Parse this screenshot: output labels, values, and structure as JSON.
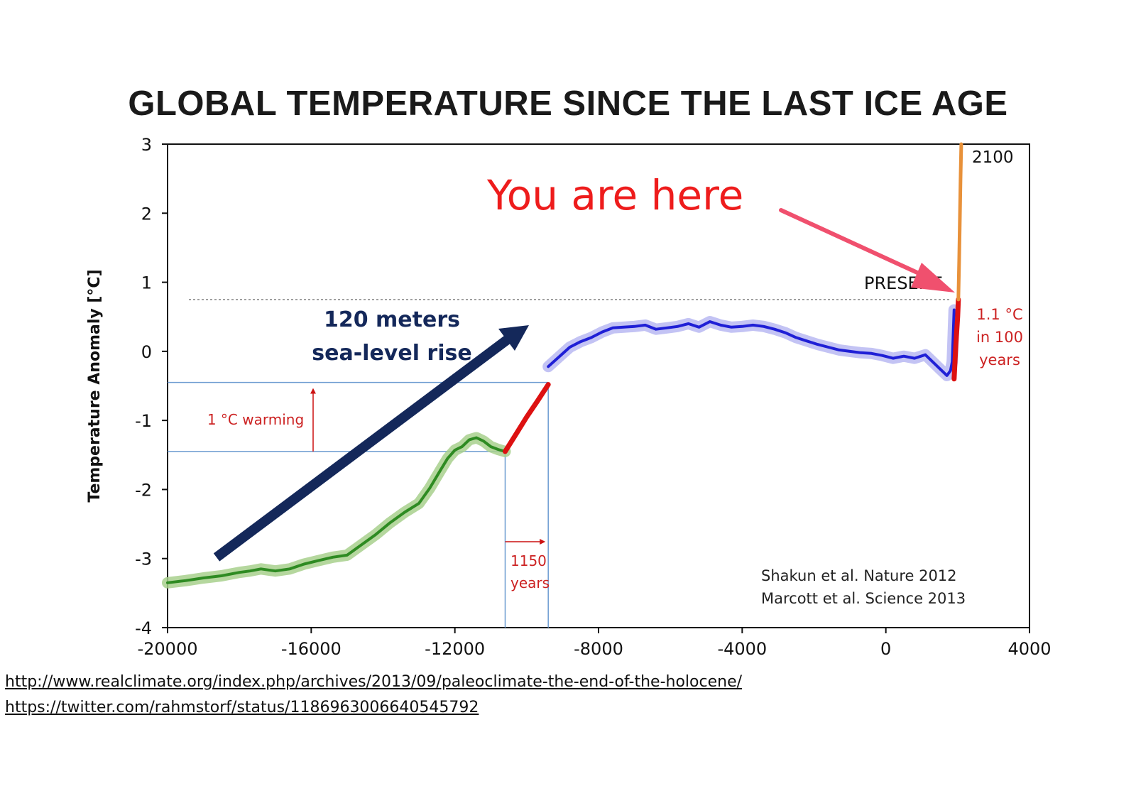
{
  "chart_data": {
    "type": "line",
    "title": "GLOBAL TEMPERATURE SINCE THE LAST ICE AGE",
    "ylabel": "Temperature Anomaly [°C]",
    "xlabel": "",
    "xlim": [
      -20000,
      4000
    ],
    "ylim": [
      -4,
      3
    ],
    "xticks": [
      -20000,
      -16000,
      -12000,
      -8000,
      -4000,
      0,
      4000
    ],
    "yticks": [
      -4,
      -3,
      -2,
      -1,
      0,
      1,
      2,
      3
    ],
    "xtick_labels": [
      "-20000",
      "-16000",
      "-12000",
      "-8000",
      "-4000",
      "0",
      "4000"
    ],
    "ytick_labels": [
      "-4",
      "-3",
      "-2",
      "-1",
      "0",
      "1",
      "2",
      "3"
    ],
    "present_level": 0.75,
    "series": [
      {
        "color": "#2e8b22",
        "band_color": "#a8d08d",
        "x": [
          -20000,
          -19500,
          -19000,
          -18500,
          -18000,
          -17700,
          -17400,
          -17000,
          -16600,
          -16200,
          -15800,
          -15400,
          -15000,
          -14600,
          -14200,
          -13800,
          -13400,
          -13000,
          -12700,
          -12400,
          -12200,
          -12000,
          -11800,
          -11600,
          -11400,
          -11200,
          -11000,
          -10800,
          -10600
        ],
        "y": [
          -3.35,
          -3.32,
          -3.28,
          -3.25,
          -3.2,
          -3.18,
          -3.15,
          -3.18,
          -3.15,
          -3.08,
          -3.03,
          -2.98,
          -2.95,
          -2.8,
          -2.65,
          -2.48,
          -2.33,
          -2.2,
          -1.98,
          -1.72,
          -1.55,
          -1.43,
          -1.38,
          -1.28,
          -1.25,
          -1.3,
          -1.38,
          -1.42,
          -1.45
        ]
      },
      {
        "color": "#dd1111",
        "x": [
          -10600,
          -10300,
          -10000,
          -9700,
          -9400
        ],
        "y": [
          -1.45,
          -1.2,
          -0.95,
          -0.72,
          -0.48
        ]
      },
      {
        "color": "#1f1fd6",
        "band_color": "#b8b8f2",
        "x": [
          -9400,
          -9100,
          -8800,
          -8500,
          -8200,
          -7900,
          -7600,
          -7300,
          -7000,
          -6700,
          -6400,
          -6100,
          -5800,
          -5500,
          -5200,
          -4900,
          -4600,
          -4300,
          -4000,
          -3700,
          -3400,
          -3100,
          -2800,
          -2500,
          -2200,
          -1900,
          -1600,
          -1300,
          -1000,
          -700,
          -400,
          -100,
          200,
          500,
          800,
          1100,
          1300,
          1500,
          1700,
          1800,
          1850,
          1900
        ],
        "y": [
          -0.22,
          -0.08,
          0.06,
          0.14,
          0.2,
          0.28,
          0.34,
          0.35,
          0.36,
          0.38,
          0.32,
          0.34,
          0.36,
          0.4,
          0.35,
          0.43,
          0.38,
          0.35,
          0.36,
          0.38,
          0.36,
          0.32,
          0.27,
          0.2,
          0.15,
          0.1,
          0.06,
          0.02,
          0.0,
          -0.02,
          -0.03,
          -0.06,
          -0.1,
          -0.07,
          -0.1,
          -0.05,
          -0.15,
          -0.25,
          -0.35,
          -0.28,
          -0.15,
          0.6
        ]
      },
      {
        "color": "#dd1111",
        "x": [
          1900,
          1950,
          2000,
          2020
        ],
        "y": [
          -0.4,
          0.1,
          0.5,
          0.75
        ]
      },
      {
        "color": "#e8913a",
        "x": [
          2020,
          2040,
          2060,
          2080,
          2100
        ],
        "y": [
          0.75,
          1.3,
          1.9,
          2.5,
          3.0
        ]
      }
    ],
    "annotations": {
      "sea_level": [
        "120 meters",
        "sea-level rise"
      ],
      "warming": "1 °C warming",
      "years1150": [
        "1150",
        "years"
      ],
      "present": "PRESENT",
      "year2100": "2100",
      "rate": [
        "1.1 °C",
        "in 100",
        "years"
      ],
      "you_are_here": "You are here",
      "sources": [
        "Shakun et al. Nature 2012",
        "Marcott et al. Science 2013"
      ]
    }
  },
  "links": [
    "http://www.realclimate.org/index.php/archives/2013/09/paleoclimate-the-end-of-the-holocene/",
    "https://twitter.com/rahmstorf/status/1186963006640545792"
  ]
}
